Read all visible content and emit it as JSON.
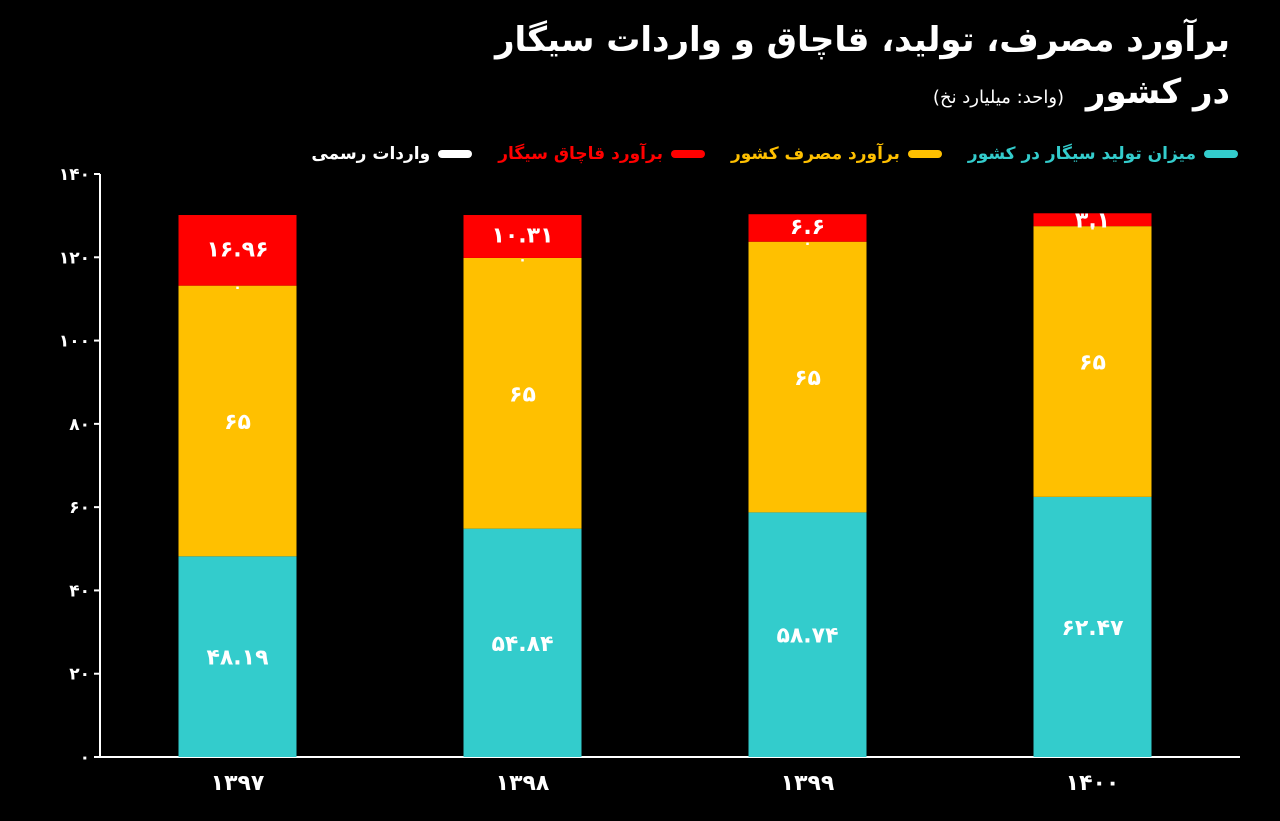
{
  "title_line1": "برآورد مصرف، تولید، قاچاق و واردات سیگار",
  "title_line2": "در کشور",
  "subtitle": "(واحد: میلیارد نخ)",
  "legend": [
    {
      "label": "میزان تولید سیگار در کشور",
      "color": "#33CCCC"
    },
    {
      "label": "برآورد مصرف کشور",
      "color": "#FFC000"
    },
    {
      "label": "برآورد قاچاق سیگار",
      "color": "#FF0000"
    },
    {
      "label": "واردات رسمی",
      "color": "#FFFFFF"
    }
  ],
  "chart_data": {
    "type": "bar",
    "stacked": true,
    "categories": [
      "۱۳۹۷",
      "۱۳۹۸",
      "۱۳۹۹",
      "۱۴۰۰"
    ],
    "series": [
      {
        "name": "میزان تولید سیگار در کشور",
        "color": "#33CCCC",
        "values": [
          48.19,
          54.84,
          58.74,
          62.47
        ],
        "labels": [
          "۴۸.۱۹",
          "۵۴.۸۴",
          "۵۸.۷۴",
          "۶۲.۴۷"
        ]
      },
      {
        "name": "برآورد مصرف کشور",
        "color": "#FFC000",
        "values": [
          65,
          65,
          65,
          65
        ],
        "labels": [
          "۶۵",
          "۶۵",
          "۶۵",
          "۶۵"
        ]
      },
      {
        "name": "واردات رسمی",
        "color": "#FFFFFF",
        "values": [
          0,
          0,
          0,
          0
        ],
        "labels": [
          "۰",
          "۰",
          "۰",
          "۰"
        ]
      },
      {
        "name": "برآورد قاچاق سیگار",
        "color": "#FF0000",
        "values": [
          16.96,
          10.31,
          6.6,
          3.1
        ],
        "labels": [
          "۱۶.۹۶",
          "۱۰.۳۱",
          "۶.۶",
          "۳.۱"
        ]
      }
    ],
    "ylim": [
      0,
      140
    ],
    "yticks": [
      0,
      20,
      40,
      60,
      80,
      100,
      120,
      140
    ],
    "ytick_labels": [
      "۰",
      "۲۰",
      "۴۰",
      "۶۰",
      "۸۰",
      "۱۰۰",
      "۱۲۰",
      "۱۴۰"
    ],
    "grid": false,
    "legend_position": "top"
  }
}
